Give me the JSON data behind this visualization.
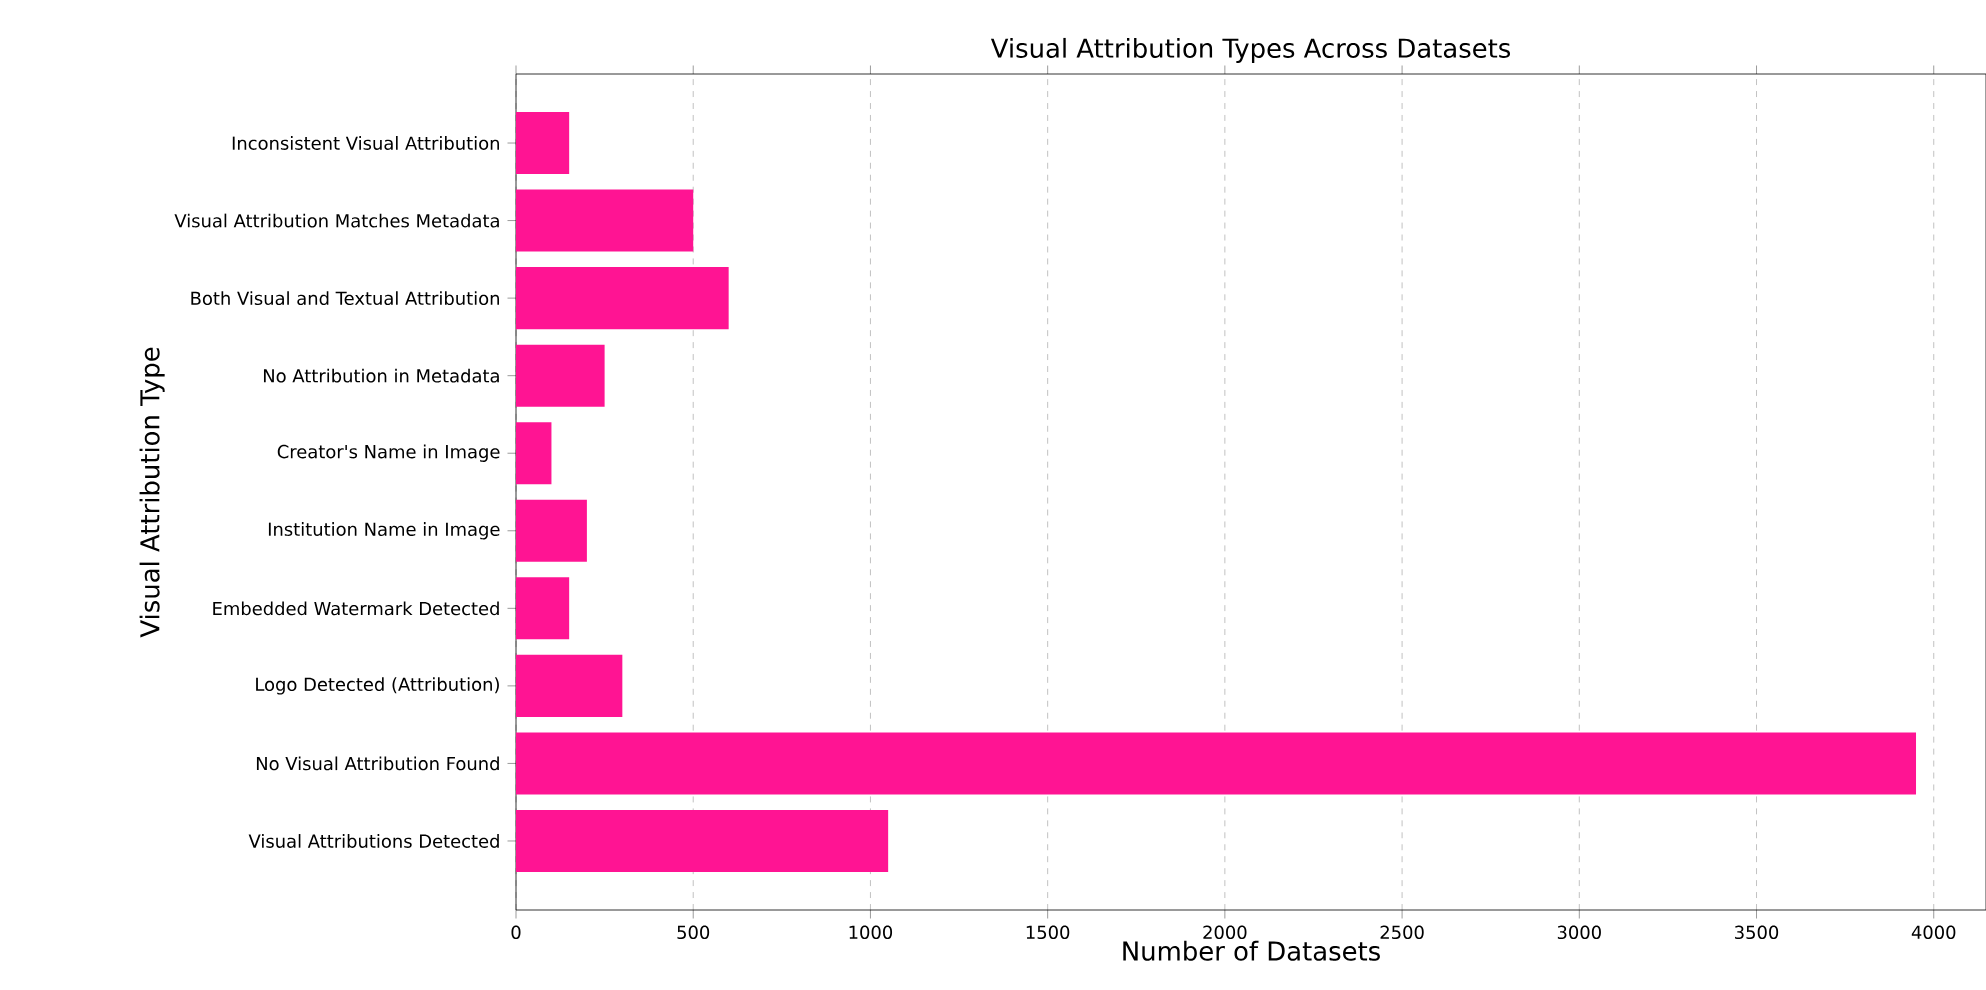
{
  "chart_data": {
    "type": "bar",
    "orientation": "horizontal",
    "title": "Visual Attribution Types Across Datasets",
    "xlabel": "Number of Datasets",
    "ylabel": "Visual Attribution Type",
    "categories": [
      "Inconsistent Visual Attribution",
      "Visual Attribution Matches Metadata",
      "Both Visual and Textual Attribution",
      "No Attribution in Metadata",
      "Creator's Name in Image",
      "Institution Name in Image",
      "Embedded Watermark Detected",
      "Logo Detected (Attribution)",
      "No Visual Attribution Found",
      "Visual Attributions Detected"
    ],
    "values": [
      150,
      500,
      600,
      250,
      100,
      200,
      150,
      300,
      3950,
      1050
    ],
    "color": "#ff1493",
    "xlim": [
      0,
      4147.5
    ],
    "xticks": [
      0,
      500,
      1000,
      1500,
      2000,
      2500,
      3000,
      3500,
      4000
    ],
    "grid": "x"
  }
}
